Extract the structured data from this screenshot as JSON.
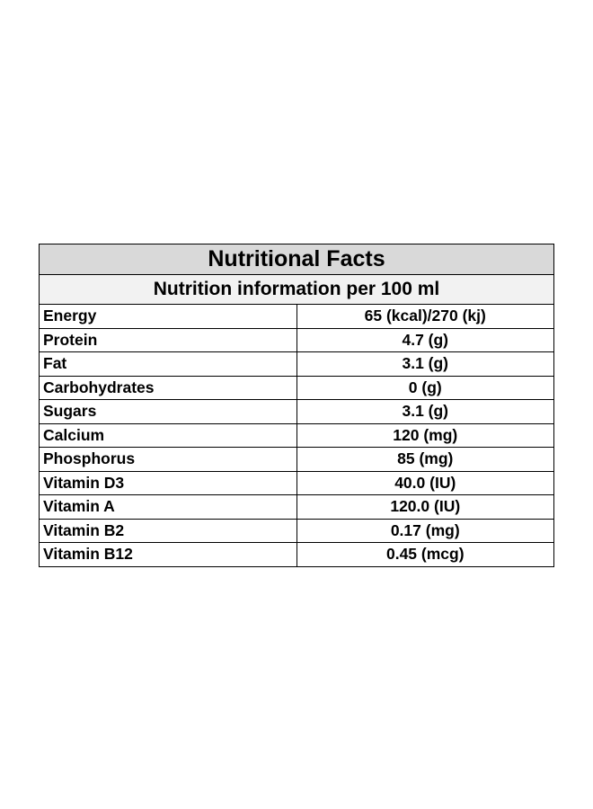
{
  "table": {
    "title": "Nutritional Facts",
    "subtitle": "Nutrition information per 100 ml",
    "rows": [
      {
        "name": "Energy",
        "value": "65 (kcal)/270 (kj)"
      },
      {
        "name": "Protein",
        "value": "4.7 (g)"
      },
      {
        "name": "Fat",
        "value": "3.1 (g)"
      },
      {
        "name": "Carbohydrates",
        "value": "0 (g)"
      },
      {
        "name": "Sugars",
        "value": "3.1 (g)"
      },
      {
        "name": "Calcium",
        "value": "120 (mg)"
      },
      {
        "name": "Phosphorus",
        "value": "85 (mg)"
      },
      {
        "name": "Vitamin D3",
        "value": "40.0 (IU)"
      },
      {
        "name": "Vitamin A",
        "value": "120.0 (IU)"
      },
      {
        "name": "Vitamin B2",
        "value": "0.17 (mg)"
      },
      {
        "name": "Vitamin B12",
        "value": "0.45 (mcg)"
      }
    ]
  },
  "colors": {
    "title_background": "#d9d9d9",
    "subtitle_background": "#f2f2f2",
    "border": "#000000",
    "text": "#000000"
  }
}
